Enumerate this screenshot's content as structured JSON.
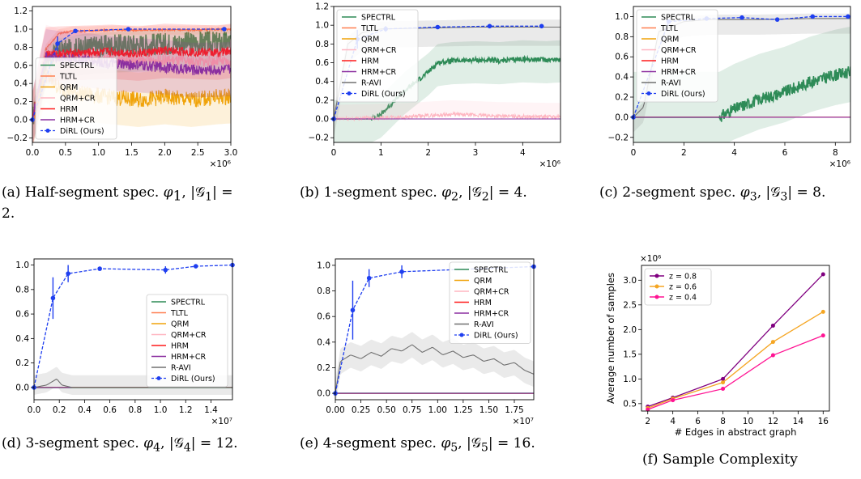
{
  "colors": {
    "SPECTRL": "#2e8b57",
    "TLTL": "#ff7f50",
    "QRM": "#f0a30a",
    "QRM+CR": "#ffb6c1",
    "HRM": "#ff1a1a",
    "HRM+CR": "#8b2fa0",
    "R-AVI": "#707070",
    "DiRL (Ours)": "#1f3ff0",
    "z = 0.8": "#800080",
    "z = 0.6": "#f5a623",
    "z = 0.4": "#ff1493"
  },
  "captions": [
    {
      "prefix": "(a) Half-segment spec.",
      "phi": "φ",
      "sub": "1",
      "tail": ", |𝒢",
      "tail2": "| = 2."
    },
    {
      "prefix": "(b) 1-segment spec.",
      "phi": "φ",
      "sub": "2",
      "tail": ", |𝒢",
      "tail2": "| = 4."
    },
    {
      "prefix": "(c) 2-segment spec.",
      "phi": "φ",
      "sub": "3",
      "tail": ", |𝒢",
      "tail2": "| = 8."
    },
    {
      "prefix": "(d) 3-segment spec.",
      "phi": "φ",
      "sub": "4",
      "tail": ", |𝒢",
      "tail2": "| = 12."
    },
    {
      "prefix": "(e) 4-segment spec.",
      "phi": "φ",
      "sub": "5",
      "tail": ", |𝒢",
      "tail2": "| = 16."
    },
    {
      "prefix": "(f) Sample Complexity",
      "phi": "",
      "sub": "",
      "tail": "",
      "tail2": ""
    }
  ],
  "chart_data": [
    {
      "type": "line",
      "panel": "a",
      "xlim": [
        0,
        3.0
      ],
      "ylim": [
        -0.25,
        1.25
      ],
      "xticks": [
        "0.0",
        "0.5",
        "1.0",
        "1.5",
        "2.0",
        "2.5",
        "3.0"
      ],
      "yticks": [
        "−0.2",
        "0.0",
        "0.2",
        "0.4",
        "0.6",
        "0.8",
        "1.0",
        "1.2"
      ],
      "x_multiplier": "×10⁶",
      "legend": [
        "SPECTRL",
        "TLTL",
        "QRM",
        "QRM+CR",
        "HRM",
        "HRM+CR",
        "DiRL (Ours)"
      ],
      "legend_position": "lower-left",
      "series": [
        {
          "name": "SPECTRL",
          "x": [
            0,
            0.2,
            0.4,
            0.8,
            1.2,
            1.6,
            2.0,
            2.4,
            2.8,
            3.0
          ],
          "y": [
            0,
            0.65,
            0.75,
            0.8,
            0.82,
            0.83,
            0.84,
            0.85,
            0.85,
            0.86
          ]
        },
        {
          "name": "TLTL",
          "x": [
            0,
            0.2,
            0.4,
            0.6,
            0.8,
            1.2,
            1.6,
            2.0,
            2.4,
            3.0
          ],
          "y": [
            0,
            0.78,
            0.95,
            0.98,
            0.98,
            0.99,
            0.99,
            0.99,
            0.99,
            1.0
          ]
        },
        {
          "name": "QRM",
          "x": [
            0,
            0.2,
            0.4,
            0.8,
            1.2,
            1.6,
            2.0,
            2.4,
            2.8,
            3.0
          ],
          "y": [
            0,
            0.5,
            0.35,
            0.28,
            0.25,
            0.22,
            0.25,
            0.22,
            0.25,
            0.26
          ]
        },
        {
          "name": "QRM+CR",
          "x": [
            0,
            0.2,
            0.4,
            0.8,
            1.2,
            1.6,
            2.0,
            2.4,
            2.8,
            3.0
          ],
          "y": [
            0,
            0.75,
            0.7,
            0.68,
            0.66,
            0.65,
            0.66,
            0.64,
            0.65,
            0.62
          ]
        },
        {
          "name": "HRM",
          "x": [
            0,
            0.2,
            0.4,
            0.8,
            1.2,
            1.6,
            2.0,
            2.4,
            2.8,
            3.0
          ],
          "y": [
            0,
            0.72,
            0.73,
            0.74,
            0.75,
            0.73,
            0.76,
            0.75,
            0.74,
            0.76
          ]
        },
        {
          "name": "HRM+CR",
          "x": [
            0,
            0.2,
            0.4,
            0.8,
            1.2,
            1.6,
            2.0,
            2.4,
            2.8,
            3.0
          ],
          "y": [
            0,
            0.7,
            0.68,
            0.66,
            0.62,
            0.6,
            0.58,
            0.55,
            0.55,
            0.56
          ]
        },
        {
          "name": "DiRL (Ours)",
          "x": [
            0,
            0.38,
            0.65,
            1.45,
            2.9
          ],
          "y": [
            0,
            0.84,
            0.98,
            1.0,
            1.0
          ],
          "err": [
            0,
            0.08,
            0.02,
            0,
            0
          ]
        }
      ]
    },
    {
      "type": "line",
      "panel": "b",
      "xlim": [
        0,
        4.8
      ],
      "ylim": [
        -0.25,
        1.2
      ],
      "xticks": [
        "0",
        "1",
        "2",
        "3",
        "4"
      ],
      "yticks": [
        "−0.2",
        "0.0",
        "0.2",
        "0.4",
        "0.6",
        "0.8",
        "1.0",
        "1.2"
      ],
      "x_multiplier": "×10⁶",
      "legend": [
        "SPECTRL",
        "TLTL",
        "QRM",
        "QRM+CR",
        "HRM",
        "HRM+CR",
        "R-AVI",
        "DiRL (Ours)"
      ],
      "legend_position": "upper-left",
      "series": [
        {
          "name": "SPECTRL",
          "x": [
            0,
            0.8,
            1.0,
            1.5,
            2.0,
            2.2,
            2.5,
            3.0,
            3.5,
            4.0,
            4.5,
            4.8
          ],
          "y": [
            0,
            0.0,
            0.05,
            0.3,
            0.5,
            0.6,
            0.62,
            0.63,
            0.62,
            0.64,
            0.63,
            0.64
          ]
        },
        {
          "name": "TLTL",
          "x": [
            0,
            4.8
          ],
          "y": [
            0,
            0
          ]
        },
        {
          "name": "QRM",
          "x": [
            0,
            4.8
          ],
          "y": [
            0,
            0
          ]
        },
        {
          "name": "QRM+CR",
          "x": [
            0,
            1.5,
            2.5,
            3.5,
            4.8
          ],
          "y": [
            0,
            0.02,
            0.05,
            0.03,
            0.02
          ]
        },
        {
          "name": "HRM",
          "x": [
            0,
            4.8
          ],
          "y": [
            0,
            0
          ]
        },
        {
          "name": "HRM+CR",
          "x": [
            0,
            4.8
          ],
          "y": [
            0,
            0
          ]
        },
        {
          "name": "R-AVI",
          "x": [
            0,
            0.3,
            0.6,
            1.0,
            2.0,
            3.0,
            4.0,
            4.8
          ],
          "y": [
            0,
            0.8,
            0.92,
            0.96,
            0.97,
            0.98,
            0.98,
            0.98
          ]
        },
        {
          "name": "DiRL (Ours)",
          "x": [
            0,
            0.5,
            1.1,
            2.2,
            3.3,
            4.4
          ],
          "y": [
            0,
            0.85,
            0.96,
            0.98,
            0.99,
            0.99
          ],
          "err": [
            0,
            0.1,
            0.03,
            0,
            0,
            0
          ]
        }
      ]
    },
    {
      "type": "line",
      "panel": "c",
      "xlim": [
        0,
        8.6
      ],
      "ylim": [
        -0.25,
        1.1
      ],
      "xticks": [
        "0",
        "2",
        "4",
        "6",
        "8"
      ],
      "yticks": [
        "−0.2",
        "0.0",
        "0.2",
        "0.4",
        "0.6",
        "0.8",
        "1.0"
      ],
      "x_multiplier": "×10⁶",
      "legend": [
        "SPECTRL",
        "TLTL",
        "QRM",
        "QRM+CR",
        "HRM",
        "HRM+CR",
        "R-AVI",
        "DiRL (Ours)"
      ],
      "legend_position": "upper-left",
      "series": [
        {
          "name": "SPECTRL",
          "x": [
            0,
            3.4,
            4.0,
            5.0,
            6.0,
            7.0,
            8.0,
            8.6
          ],
          "y": [
            0,
            0.0,
            0.08,
            0.18,
            0.25,
            0.35,
            0.42,
            0.45
          ]
        },
        {
          "name": "TLTL",
          "x": [
            0,
            8.6
          ],
          "y": [
            0,
            0
          ]
        },
        {
          "name": "QRM",
          "x": [
            0,
            8.6
          ],
          "y": [
            0,
            0
          ]
        },
        {
          "name": "QRM+CR",
          "x": [
            0,
            8.6
          ],
          "y": [
            0,
            0
          ]
        },
        {
          "name": "HRM",
          "x": [
            0,
            8.6
          ],
          "y": [
            0,
            0
          ]
        },
        {
          "name": "HRM+CR",
          "x": [
            0,
            8.6
          ],
          "y": [
            0,
            0
          ]
        },
        {
          "name": "R-AVI",
          "x": [
            0,
            0.4,
            1.0,
            2.0,
            3.0,
            5.0,
            7.0,
            8.6
          ],
          "y": [
            0,
            0.1,
            0.85,
            0.95,
            0.97,
            0.97,
            0.98,
            0.98
          ]
        },
        {
          "name": "DiRL (Ours)",
          "x": [
            0,
            1.4,
            2.9,
            4.3,
            5.7,
            7.1,
            8.5
          ],
          "y": [
            0,
            0.95,
            0.98,
            0.99,
            0.97,
            1.0,
            1.0
          ],
          "err": [
            0,
            0.02,
            0,
            0,
            0.02,
            0,
            0
          ]
        }
      ]
    },
    {
      "type": "line",
      "panel": "d",
      "xlim": [
        0,
        1.57
      ],
      "ylim": [
        -0.1,
        1.05
      ],
      "xticks": [
        "0.0",
        "0.2",
        "0.4",
        "0.6",
        "0.8",
        "1.0",
        "1.2",
        "1.4"
      ],
      "yticks": [
        "0.0",
        "0.2",
        "0.4",
        "0.6",
        "0.8",
        "1.0"
      ],
      "x_multiplier": "×10⁷",
      "legend": [
        "SPECTRL",
        "TLTL",
        "QRM",
        "QRM+CR",
        "HRM",
        "HRM+CR",
        "R-AVI",
        "DiRL (Ours)"
      ],
      "legend_position": "lower-right",
      "series": [
        {
          "name": "SPECTRL",
          "x": [
            0,
            1.57
          ],
          "y": [
            0,
            0
          ]
        },
        {
          "name": "TLTL",
          "x": [
            0,
            1.57
          ],
          "y": [
            0,
            0
          ]
        },
        {
          "name": "QRM",
          "x": [
            0,
            1.57
          ],
          "y": [
            0,
            0
          ]
        },
        {
          "name": "QRM+CR",
          "x": [
            0,
            1.57
          ],
          "y": [
            0,
            0
          ]
        },
        {
          "name": "HRM",
          "x": [
            0,
            1.57
          ],
          "y": [
            0,
            0
          ]
        },
        {
          "name": "HRM+CR",
          "x": [
            0,
            1.57
          ],
          "y": [
            0,
            0
          ]
        },
        {
          "name": "R-AVI",
          "x": [
            0,
            0.1,
            0.18,
            0.22,
            0.3,
            1.57
          ],
          "y": [
            0,
            0.02,
            0.07,
            0.02,
            0,
            0
          ]
        },
        {
          "name": "DiRL (Ours)",
          "x": [
            0,
            0.15,
            0.27,
            0.52,
            1.04,
            1.28,
            1.57
          ],
          "y": [
            0,
            0.73,
            0.93,
            0.97,
            0.96,
            0.99,
            1.0
          ],
          "err": [
            0,
            0.17,
            0.07,
            0.01,
            0.03,
            0.01,
            0
          ]
        }
      ]
    },
    {
      "type": "line",
      "panel": "e",
      "xlim": [
        0,
        1.94
      ],
      "ylim": [
        -0.05,
        1.05
      ],
      "xticks": [
        "0.00",
        "0.25",
        "0.50",
        "0.75",
        "1.00",
        "1.25",
        "1.50",
        "1.75"
      ],
      "yticks": [
        "0.0",
        "0.2",
        "0.4",
        "0.6",
        "0.8",
        "1.0"
      ],
      "x_multiplier": "×10⁷",
      "legend": [
        "SPECTRL",
        "QRM",
        "QRM+CR",
        "HRM",
        "HRM+CR",
        "R-AVI",
        "DiRL (Ours)"
      ],
      "legend_position": "right",
      "series": [
        {
          "name": "SPECTRL",
          "x": [
            0,
            1.94
          ],
          "y": [
            0,
            0
          ]
        },
        {
          "name": "QRM",
          "x": [
            0,
            1.94
          ],
          "y": [
            0,
            0
          ]
        },
        {
          "name": "QRM+CR",
          "x": [
            0,
            1.94
          ],
          "y": [
            0,
            0
          ]
        },
        {
          "name": "HRM",
          "x": [
            0,
            1.94
          ],
          "y": [
            0,
            0
          ]
        },
        {
          "name": "HRM+CR",
          "x": [
            0,
            1.94
          ],
          "y": [
            0,
            0
          ]
        },
        {
          "name": "R-AVI",
          "x": [
            0,
            0.05,
            0.15,
            0.25,
            0.35,
            0.45,
            0.55,
            0.65,
            0.75,
            0.85,
            0.95,
            1.05,
            1.15,
            1.25,
            1.35,
            1.45,
            1.55,
            1.65,
            1.75,
            1.85,
            1.94
          ],
          "y": [
            0,
            0.25,
            0.3,
            0.27,
            0.32,
            0.29,
            0.35,
            0.33,
            0.38,
            0.32,
            0.36,
            0.3,
            0.33,
            0.28,
            0.3,
            0.25,
            0.27,
            0.22,
            0.24,
            0.18,
            0.15
          ]
        },
        {
          "name": "DiRL (Ours)",
          "x": [
            0,
            0.17,
            0.33,
            0.65,
            1.94
          ],
          "y": [
            0,
            0.65,
            0.9,
            0.95,
            0.99
          ],
          "err": [
            0,
            0.23,
            0.07,
            0.05,
            0
          ]
        }
      ]
    },
    {
      "type": "line",
      "panel": "f",
      "x": [
        2,
        4,
        8,
        12,
        16
      ],
      "xlim": [
        1.5,
        16.5
      ],
      "ylim": [
        0.35,
        3.3
      ],
      "xticks": [
        "2",
        "4",
        "6",
        "8",
        "10",
        "12",
        "14",
        "16"
      ],
      "yticks": [
        "0.5",
        "1.0",
        "1.5",
        "2.0",
        "2.5",
        "3.0"
      ],
      "y_multiplier": "×10⁶",
      "xlabel": "# Edges in abstract graph",
      "ylabel": "Average number of samples",
      "legend": [
        "z = 0.8",
        "z = 0.6",
        "z = 0.4"
      ],
      "legend_position": "upper-left",
      "series": [
        {
          "name": "z = 0.8",
          "values": [
            0.44,
            0.62,
            1.0,
            2.08,
            3.12
          ]
        },
        {
          "name": "z = 0.6",
          "values": [
            0.41,
            0.6,
            0.93,
            1.75,
            2.36
          ]
        },
        {
          "name": "z = 0.4",
          "values": [
            0.38,
            0.57,
            0.8,
            1.48,
            1.88
          ]
        }
      ]
    }
  ]
}
